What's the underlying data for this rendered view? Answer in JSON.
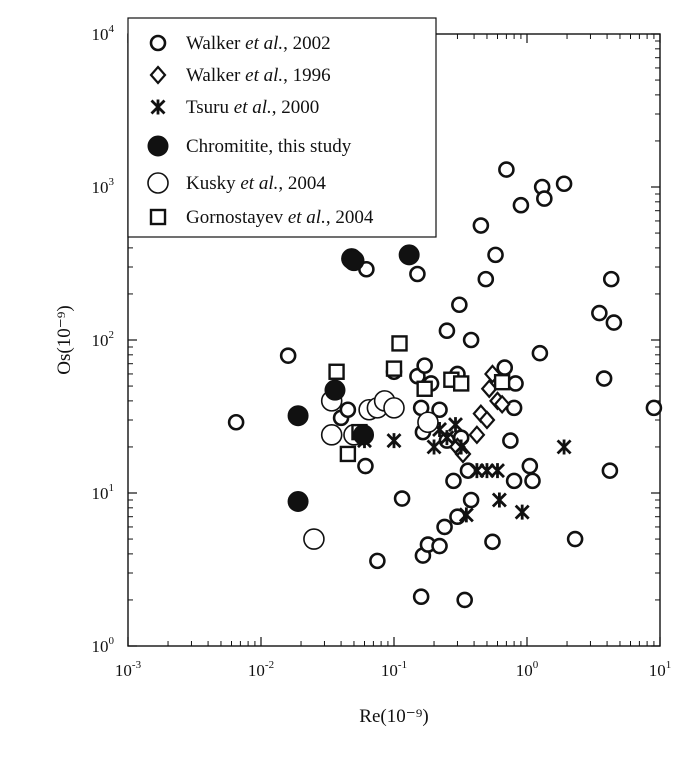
{
  "chart_data": {
    "type": "scatter",
    "xscale": "log",
    "yscale": "log",
    "xlim": [
      0.001,
      10
    ],
    "ylim": [
      1,
      10000
    ],
    "xlabel": "Re(10⁻⁹)",
    "ylabel": "Os(10⁻⁹)",
    "xticks": [
      {
        "value": 0.001,
        "base": "10",
        "exp": "-3"
      },
      {
        "value": 0.01,
        "base": "10",
        "exp": "-2"
      },
      {
        "value": 0.1,
        "base": "10",
        "exp": "-1"
      },
      {
        "value": 1,
        "base": "10",
        "exp": "0"
      },
      {
        "value": 10,
        "base": "10",
        "exp": "1"
      }
    ],
    "yticks": [
      {
        "value": 1,
        "base": "10",
        "exp": "0"
      },
      {
        "value": 10,
        "base": "10",
        "exp": "1"
      },
      {
        "value": 100,
        "base": "10",
        "exp": "2"
      },
      {
        "value": 1000,
        "base": "10",
        "exp": "3"
      },
      {
        "value": 10000,
        "base": "10",
        "exp": "4"
      }
    ],
    "legend_position": "top-left",
    "series": [
      {
        "name": "Walker et al., 2002",
        "label_parts": [
          "Walker ",
          "et al.",
          ", 2002"
        ],
        "marker": "small-open-circle",
        "points": [
          [
            0.0065,
            29
          ],
          [
            0.016,
            79
          ],
          [
            0.04,
            31
          ],
          [
            0.045,
            35
          ],
          [
            0.061,
            15
          ],
          [
            0.062,
            290
          ],
          [
            0.075,
            3.6
          ],
          [
            0.1,
            62
          ],
          [
            0.115,
            9.2
          ],
          [
            0.15,
            58
          ],
          [
            0.15,
            270
          ],
          [
            0.16,
            36
          ],
          [
            0.16,
            2.1
          ],
          [
            0.165,
            3.9
          ],
          [
            0.165,
            25
          ],
          [
            0.17,
            68
          ],
          [
            0.18,
            4.6
          ],
          [
            0.19,
            52
          ],
          [
            0.22,
            4.5
          ],
          [
            0.22,
            35
          ],
          [
            0.24,
            6
          ],
          [
            0.25,
            22
          ],
          [
            0.25,
            115
          ],
          [
            0.28,
            12
          ],
          [
            0.3,
            60
          ],
          [
            0.3,
            7
          ],
          [
            0.31,
            170
          ],
          [
            0.32,
            23
          ],
          [
            0.34,
            2
          ],
          [
            0.36,
            14
          ],
          [
            0.38,
            100
          ],
          [
            0.38,
            9
          ],
          [
            0.45,
            560
          ],
          [
            0.49,
            250
          ],
          [
            0.55,
            4.8
          ],
          [
            0.58,
            360
          ],
          [
            0.68,
            66
          ],
          [
            0.7,
            1300
          ],
          [
            0.75,
            22
          ],
          [
            0.8,
            12
          ],
          [
            0.8,
            36
          ],
          [
            0.82,
            52
          ],
          [
            0.9,
            760
          ],
          [
            1.05,
            15
          ],
          [
            1.1,
            12
          ],
          [
            1.25,
            82
          ],
          [
            1.3,
            1000
          ],
          [
            1.35,
            840
          ],
          [
            1.9,
            1050
          ],
          [
            2.3,
            5
          ],
          [
            3.5,
            150
          ],
          [
            3.8,
            56
          ],
          [
            4.2,
            14
          ],
          [
            4.3,
            250
          ],
          [
            4.5,
            130
          ],
          [
            9,
            36
          ]
        ]
      },
      {
        "name": "Walker et al., 1996",
        "label_parts": [
          "Walker ",
          "et al.",
          ", 1996"
        ],
        "marker": "open-diamond",
        "points": [
          [
            0.42,
            24
          ],
          [
            0.45,
            33
          ],
          [
            0.5,
            30
          ],
          [
            0.52,
            48
          ],
          [
            0.6,
            40
          ],
          [
            0.65,
            38
          ],
          [
            0.55,
            60
          ],
          [
            0.33,
            18
          ],
          [
            0.3,
            20
          ]
        ]
      },
      {
        "name": "Tsuru et al., 2000",
        "label_parts": [
          "Tsuru ",
          "et al.",
          ", 2000"
        ],
        "marker": "asterisk",
        "points": [
          [
            0.06,
            22
          ],
          [
            0.1,
            22
          ],
          [
            0.2,
            20
          ],
          [
            0.22,
            26
          ],
          [
            0.25,
            23
          ],
          [
            0.29,
            28
          ],
          [
            0.32,
            20
          ],
          [
            0.35,
            7.2
          ],
          [
            0.42,
            14
          ],
          [
            0.5,
            14
          ],
          [
            0.6,
            14
          ],
          [
            0.62,
            9
          ],
          [
            0.92,
            7.5
          ],
          [
            1.9,
            20
          ]
        ]
      },
      {
        "name": "Chromitite, this study",
        "label_parts": [
          "Chromitite, this study",
          "",
          ""
        ],
        "marker": "filled-circle",
        "points": [
          [
            0.019,
            32
          ],
          [
            0.019,
            8.8
          ],
          [
            0.036,
            47
          ],
          [
            0.048,
            340
          ],
          [
            0.05,
            330
          ],
          [
            0.059,
            24
          ],
          [
            0.13,
            360
          ]
        ]
      },
      {
        "name": "Kusky et al., 2004",
        "label_parts": [
          "Kusky ",
          "et al.",
          ", 2004"
        ],
        "marker": "large-open-circle",
        "points": [
          [
            0.025,
            5
          ],
          [
            0.034,
            24
          ],
          [
            0.034,
            40
          ],
          [
            0.05,
            24
          ],
          [
            0.065,
            35
          ],
          [
            0.075,
            36
          ],
          [
            0.085,
            40
          ],
          [
            0.1,
            36
          ],
          [
            0.18,
            29
          ]
        ]
      },
      {
        "name": "Gornostayev et al., 2004",
        "label_parts": [
          "Gornostayev ",
          "et al.",
          ", 2004"
        ],
        "marker": "open-square",
        "points": [
          [
            0.037,
            62
          ],
          [
            0.045,
            18
          ],
          [
            0.055,
            25
          ],
          [
            0.1,
            65
          ],
          [
            0.11,
            95
          ],
          [
            0.17,
            48
          ],
          [
            0.27,
            55
          ],
          [
            0.32,
            52
          ],
          [
            0.65,
            53
          ]
        ]
      }
    ]
  }
}
